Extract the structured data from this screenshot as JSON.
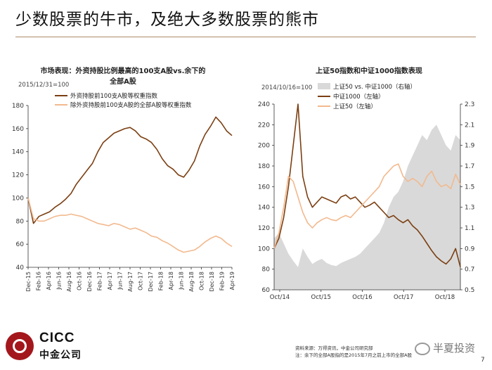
{
  "slide": {
    "title": "少数股票的牛市，及绝大多数股票的熊市",
    "page_number": "7"
  },
  "footer": {
    "logo_en": "CICC",
    "logo_cn": "中金公司",
    "source_line1": "资料来源：万得资讯，中金公司研究部",
    "source_line2": "注：余下的全部A股指的是2015年7月之前上市的全部A股",
    "watermark": "半夏投资"
  },
  "chart_data": [
    {
      "type": "line",
      "title_line1": "市场表现：外资持股比例最高的100支A股vs.余下的",
      "title_line2": "全部A股",
      "note": "2015/12/31=100",
      "ylim": [
        40,
        180
      ],
      "yticks": [
        40,
        60,
        80,
        100,
        120,
        140,
        160,
        180
      ],
      "x_tick_labels": [
        "Dec-15",
        "Feb-16",
        "Apr-16",
        "Jun-16",
        "Aug-16",
        "Oct-16",
        "Dec-16",
        "Feb-17",
        "Apr-17",
        "Jun-17",
        "Aug-17",
        "Oct-17",
        "Dec-17",
        "Feb-18",
        "Apr-18",
        "Jun-18",
        "Aug-18",
        "Oct-18",
        "Dec-18",
        "Feb-19",
        "Apr-19"
      ],
      "legend_position": "top-left",
      "series": [
        {
          "name": "外资持股前100支A股等权重指数",
          "color": "#7b3f12",
          "values": [
            100,
            78,
            84,
            86,
            88,
            92,
            95,
            99,
            104,
            112,
            118,
            124,
            130,
            140,
            148,
            152,
            156,
            158,
            160,
            161,
            158,
            153,
            151,
            148,
            142,
            134,
            128,
            125,
            120,
            118,
            124,
            132,
            145,
            155,
            162,
            170,
            165,
            158,
            154
          ]
        },
        {
          "name": "除外资持股前100支A股的全部A股等权重指数",
          "color": "#f2b98e",
          "values": [
            100,
            82,
            80,
            80,
            82,
            84,
            85,
            85,
            86,
            85,
            84,
            82,
            80,
            78,
            77,
            76,
            78,
            77,
            75,
            73,
            74,
            72,
            70,
            67,
            66,
            63,
            61,
            58,
            55,
            53,
            54,
            55,
            58,
            62,
            65,
            67,
            65,
            61,
            58
          ]
        }
      ]
    },
    {
      "type": "line",
      "title": "上证50指数和中证1000指数表现",
      "note": "2014/10/16=100",
      "ylim_left": [
        60,
        240
      ],
      "yticks_left": [
        60,
        80,
        100,
        120,
        140,
        160,
        180,
        200,
        220,
        240
      ],
      "ylim_right": [
        0.5,
        2.3
      ],
      "yticks_right": [
        0.5,
        0.7,
        0.9,
        1.1,
        1.3,
        1.5,
        1.7,
        1.9,
        2.1,
        2.3
      ],
      "x_tick_labels": [
        "Oct/14",
        "Oct/15",
        "Oct/16",
        "Oct/17",
        "Oct/18"
      ],
      "legend_position": "top-left",
      "series": [
        {
          "name": "上证50 vs. 中证1000（右轴）",
          "color": "#d9d9d9",
          "axis": "right",
          "kind": "area",
          "values": [
            1.0,
            1.05,
            0.95,
            0.85,
            0.78,
            0.72,
            0.9,
            0.82,
            0.75,
            0.78,
            0.8,
            0.76,
            0.74,
            0.73,
            0.76,
            0.78,
            0.8,
            0.82,
            0.85,
            0.9,
            0.95,
            1.0,
            1.05,
            1.15,
            1.3,
            1.4,
            1.45,
            1.55,
            1.7,
            1.8,
            1.9,
            2.0,
            1.95,
            2.05,
            2.1,
            2.0,
            1.9,
            1.85,
            2.0,
            1.95
          ]
        },
        {
          "name": "中证1000（左轴）",
          "color": "#7b3f12",
          "axis": "left",
          "kind": "line",
          "values": [
            100,
            110,
            130,
            160,
            200,
            240,
            170,
            150,
            140,
            145,
            150,
            148,
            146,
            144,
            150,
            152,
            148,
            150,
            145,
            140,
            142,
            145,
            140,
            135,
            130,
            132,
            128,
            125,
            128,
            122,
            118,
            112,
            105,
            98,
            92,
            88,
            85,
            90,
            100,
            82
          ]
        },
        {
          "name": "上证50（左轴）",
          "color": "#f2b98e",
          "axis": "left",
          "kind": "line",
          "values": [
            100,
            115,
            140,
            170,
            165,
            150,
            135,
            125,
            120,
            125,
            128,
            130,
            128,
            127,
            130,
            132,
            130,
            135,
            140,
            145,
            150,
            155,
            160,
            170,
            175,
            180,
            182,
            170,
            165,
            168,
            165,
            160,
            170,
            175,
            165,
            160,
            162,
            158,
            172,
            162
          ]
        }
      ]
    }
  ]
}
